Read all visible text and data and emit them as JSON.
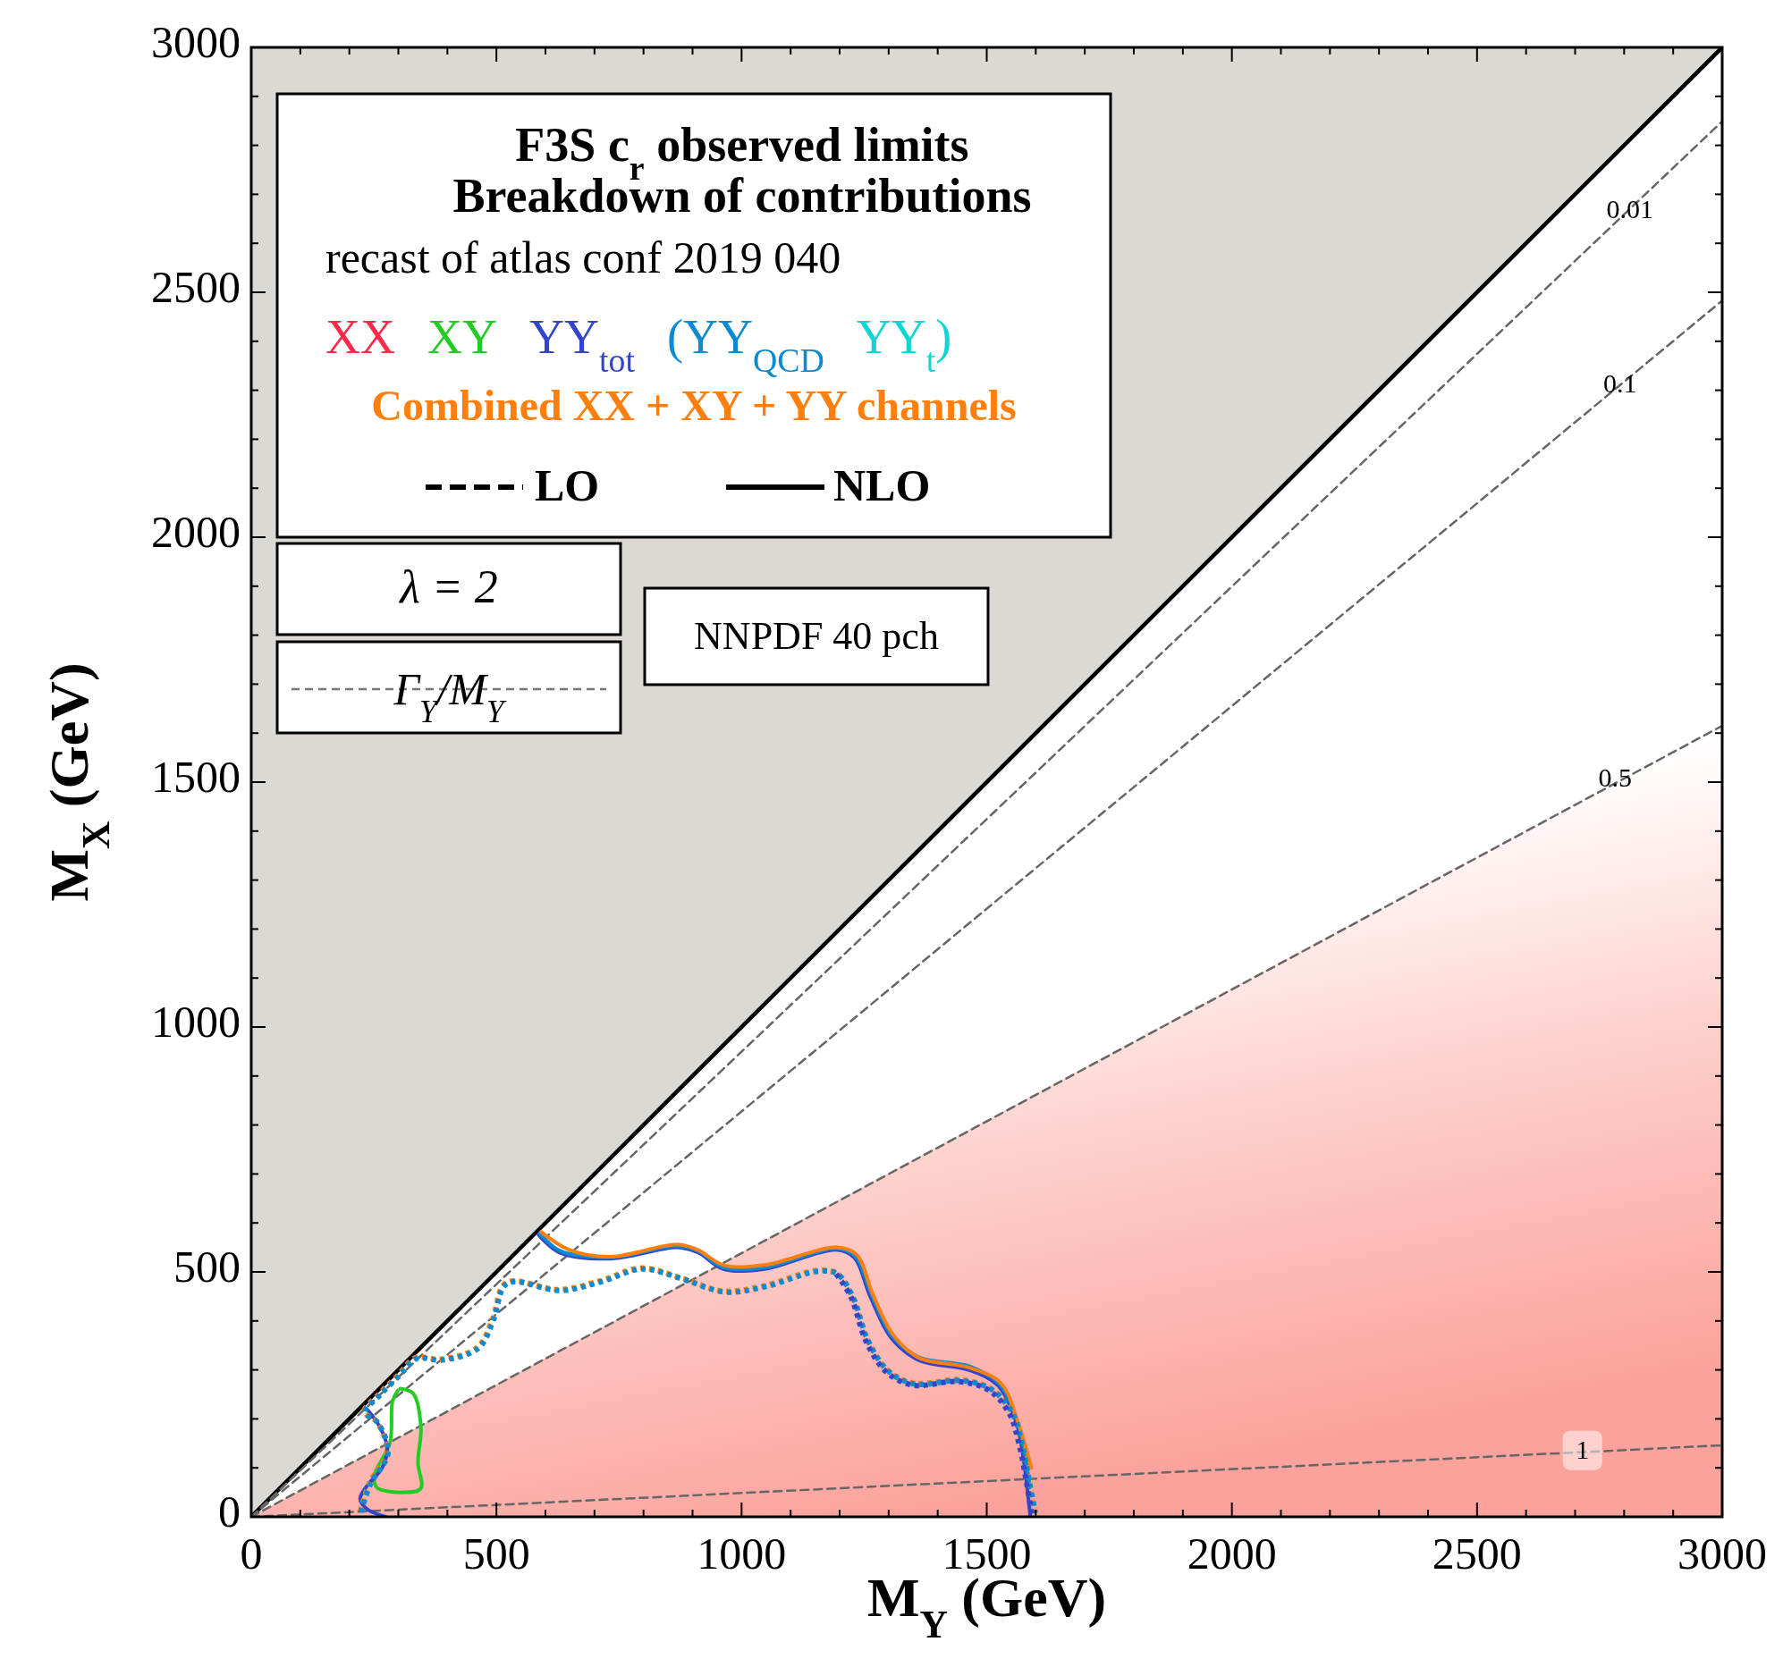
{
  "chart_data": {
    "type": "line",
    "title": "F3S c$_{r}$ observed limits",
    "subtitle": "Breakdown of contributions",
    "xlabel": "M$_{Y}$ (GeV)",
    "ylabel": "M$_{X}$ (GeV)",
    "annotations": [
      "recast of atlas conf 2019 040",
      "LO",
      "NLO",
      "λ = 2",
      "Γ$_{Y}$/M$_{Y}$",
      "NNPDF 40 pch",
      "XX",
      "YY$_{t}$)",
      {
        "text": "0.01",
        "x": 2775,
        "y": 2636
      },
      {
        "text": "0.1",
        "x": 2755,
        "y": 2281
      },
      {
        "text": "0.5",
        "x": 2745,
        "y": 1477
      },
      {
        "text": "1",
        "x": 2715,
        "y": 132
      }
    ],
    "xlim": [
      0,
      3000
    ],
    "ylim": [
      0,
      3000
    ],
    "xticks": [
      0,
      {
        "value": 100,
        "label": null
      },
      {
        "value": 200,
        "label": null
      },
      {
        "value": 300,
        "label": null
      },
      {
        "value": 400,
        "label": null
      },
      500,
      {
        "value": 600,
        "label": null
      },
      {
        "value": 700,
        "label": null
      },
      {
        "value": 800,
        "label": null
      },
      {
        "value": 900,
        "label": null
      },
      1000,
      {
        "value": 1100,
        "label": null
      },
      {
        "value": 1200,
        "label": null
      },
      {
        "value": 1300,
        "label": null
      },
      {
        "value": 1400,
        "label": null
      },
      1500,
      {
        "value": 1600,
        "label": null
      },
      {
        "value": 1700,
        "label": null
      },
      {
        "value": 1800,
        "label": null
      },
      {
        "value": 1900,
        "label": null
      },
      2000,
      {
        "value": 2100,
        "label": null
      },
      {
        "value": 2200,
        "label": null
      },
      {
        "value": 2300,
        "label": null
      },
      {
        "value": 2400,
        "label": null
      },
      2500,
      {
        "value": 2600,
        "label": null
      },
      {
        "value": 2700,
        "label": null
      },
      {
        "value": 2800,
        "label": null
      },
      {
        "value": 2900,
        "label": null
      },
      3000
    ],
    "yticks": [
      0,
      {
        "value": 100,
        "label": null
      },
      {
        "value": 200,
        "label": null
      },
      {
        "value": 300,
        "label": null
      },
      {
        "value": 400,
        "label": null
      },
      500,
      {
        "value": 600,
        "label": null
      },
      {
        "value": 700,
        "label": null
      },
      {
        "value": 800,
        "label": null
      },
      {
        "value": 900,
        "label": null
      },
      1000,
      {
        "value": 1100,
        "label": null
      },
      {
        "value": 1200,
        "label": null
      },
      {
        "value": 1300,
        "label": null
      },
      {
        "value": 1400,
        "label": null
      },
      1500,
      {
        "value": 1600,
        "label": null
      },
      {
        "value": 1700,
        "label": null
      },
      {
        "value": 1800,
        "label": null
      },
      {
        "value": 1900,
        "label": null
      },
      2000,
      {
        "value": 2100,
        "label": null
      },
      {
        "value": 2200,
        "label": null
      },
      {
        "value": 2300,
        "label": null
      },
      {
        "value": 2400,
        "label": null
      },
      2500,
      {
        "value": 2600,
        "label": null
      },
      {
        "value": 2700,
        "label": null
      },
      {
        "value": 2800,
        "label": null
      },
      {
        "value": 2900,
        "label": null
      },
      3000
    ],
    "grid": false,
    "legend": "top left",
    "marker": "none",
    "series": [
      {
        "color": "#000000",
        "x": [
          0,
          3000
        ],
        "values": [
          0,
          3000
        ],
        "line_style": "solid"
      },
      {
        "color": "#666666",
        "x": [
          0,
          3000
        ],
        "values": [
          0,
          2849
        ],
        "line_style": "dashed"
      },
      {
        "color": "#666666",
        "x": [
          0,
          3000
        ],
        "values": [
          0,
          2483
        ],
        "line_style": "dashed"
      },
      {
        "color": "#666666",
        "x": [
          0,
          3000
        ],
        "values": [
          0,
          1615
        ],
        "line_style": "dashed"
      },
      {
        "color": "#666666",
        "x": [
          0,
          3000
        ],
        "values": [
          0,
          146
        ],
        "line_style": "dashed"
      },
      {
        "name": "XY",
        "color": "#22cc22",
        "x": [
          304,
          330,
          346,
          340,
          346,
          314,
          256,
          251,
          283,
          288,
          299
        ],
        "values": [
          262,
          252,
          184,
          111,
          58,
          50,
          60,
          84,
          152,
          236,
          258
        ]
      },
      {
        "name": "YY$_{tot}$",
        "color": "#3344cc",
        "x": [
          586,
          628,
          733,
          869,
          911,
          963,
          1047,
          1193,
          1230,
          1262,
          1304,
          1361,
          1466,
          1523,
          1560,
          1576,
          1586,
          1589
        ],
        "values": [
          576,
          540,
          527,
          550,
          540,
          506,
          506,
          545,
          529,
          451,
          367,
          320,
          299,
          268,
          194,
          111,
          27,
          0
        ]
      },
      {
        "name": "(YY$_{QCD}$",
        "color": "#0a8ad0",
        "x": [
          588,
          630,
          733,
          869,
          911,
          963,
          1047,
          1193,
          1232,
          1265,
          1306,
          1361,
          1466,
          1525,
          1562,
          1580,
          1588
        ],
        "values": [
          579,
          543,
          530,
          553,
          543,
          509,
          509,
          548,
          532,
          454,
          371,
          326,
          307,
          272,
          197,
          114,
          60
        ]
      },
      {
        "name": "Combined XX + XY + YY channels",
        "color": "#ff7f0e",
        "x": [
          591,
          649,
          733,
          869,
          911,
          963,
          1047,
          1193,
          1235,
          1267,
          1309,
          1361,
          1466,
          1529,
          1560,
          1591
        ],
        "values": [
          582,
          545,
          531,
          556,
          545,
          514,
          514,
          550,
          535,
          456,
          372,
          325,
          304,
          273,
          205,
          100
        ]
      },
      {
        "color": "#3344cc",
        "x": [
          236,
          262,
          277,
          267,
          236,
          222,
          236,
          274
        ],
        "values": [
          220,
          184,
          142,
          100,
          63,
          37,
          16,
          0
        ]
      },
      {
        "color": "#ff7f0e",
        "line_style": "dotted",
        "x": [
          222,
          241,
          277,
          256,
          230,
          260,
          300,
          335,
          387,
          461,
          492,
          513,
          534,
          628,
          712,
          796,
          879,
          963,
          1047,
          1152,
          1193,
          1225,
          1256,
          1298,
          1351,
          1445,
          1508,
          1550,
          1570,
          1586,
          1597
        ],
        "values": [
          11,
          69,
          132,
          194,
          215,
          250,
          290,
          325,
          322,
          346,
          404,
          472,
          482,
          464,
          482,
          508,
          487,
          461,
          472,
          503,
          498,
          451,
          362,
          299,
          273,
          280,
          262,
          215,
          152,
          69,
          11
        ]
      },
      {
        "color": "#0a8ad0",
        "line_style": "dotted",
        "x": [
          224,
          243,
          279,
          258,
          232,
          262,
          302,
          337,
          389,
          463,
          494,
          515,
          536,
          630,
          714,
          798,
          881,
          965,
          1049,
          1154,
          1195,
          1227,
          1258,
          1300,
          1353,
          1447,
          1510,
          1552,
          1572,
          1588,
          1599
        ],
        "values": [
          9,
          67,
          130,
          192,
          213,
          248,
          288,
          323,
          320,
          344,
          402,
          470,
          480,
          462,
          480,
          506,
          485,
          459,
          470,
          501,
          496,
          449,
          360,
          297,
          271,
          278,
          260,
          213,
          150,
          67,
          9
        ]
      },
      {
        "color": "#3344cc",
        "line_style": "dotted",
        "x": [
          1193,
          1223,
          1254,
          1296,
          1349,
          1443,
          1505,
          1546,
          1566,
          1582,
          1593
        ],
        "values": [
          496,
          449,
          358,
          295,
          269,
          276,
          258,
          211,
          148,
          65,
          0
        ]
      }
    ]
  }
}
